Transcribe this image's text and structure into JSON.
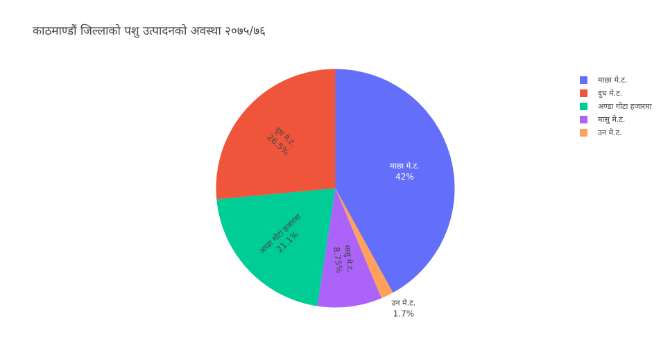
{
  "chart_data": {
    "type": "pie",
    "title": "काठमाण्डौं जिल्लाको पशु उत्पादनको अवस्था २०७५/७६",
    "slices": [
      {
        "label": "माछा मे.ट.",
        "percent": 42,
        "percent_text": "42%",
        "color": "#636efa",
        "text_color": "#ffffff"
      },
      {
        "label": "उन मे.ट.",
        "percent": 1.7,
        "percent_text": "1.7%",
        "color": "#ffa15a",
        "text_color": "#444444"
      },
      {
        "label": "मासु मे.ट.",
        "percent": 8.75,
        "percent_text": "8.75%",
        "color": "#ab63fa",
        "text_color": "#444444"
      },
      {
        "label": "अण्डा गोटा हजारमा",
        "percent": 21.1,
        "percent_text": "21.1%",
        "color": "#00cc96",
        "text_color": "#444444"
      },
      {
        "label": "दुध मे.ट.",
        "percent": 26.5,
        "percent_text": "26.5%",
        "color": "#ef553b",
        "text_color": "#444444"
      }
    ],
    "legend": [
      {
        "label": "माछा मे.ट.",
        "color": "#636efa"
      },
      {
        "label": "दुध मे.ट.",
        "color": "#ef553b"
      },
      {
        "label": "अण्डा गोटा हजारमा",
        "color": "#00cc96"
      },
      {
        "label": "मासु मे.ट.",
        "color": "#ab63fa"
      },
      {
        "label": "उन मे.ट.",
        "color": "#ffa15a"
      }
    ],
    "legend_position": "top-right",
    "start": "top",
    "direction": "clockwise"
  }
}
